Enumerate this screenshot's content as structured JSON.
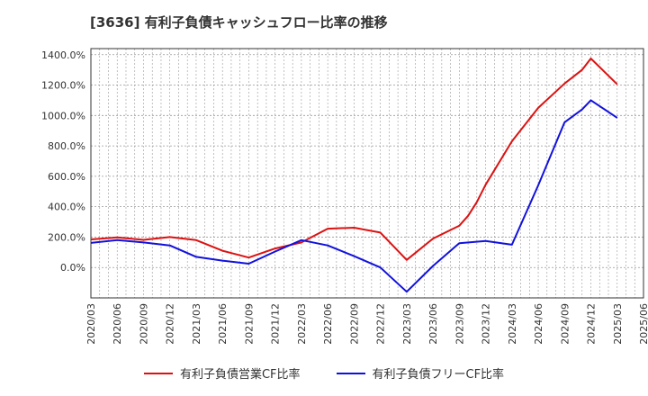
{
  "title": "[3636]  有利子負債キャッシュフロー比率の推移",
  "colors": {
    "series_1": "#dd1111",
    "series_2": "#1111dd",
    "grid": "#999999",
    "axis": "#333333"
  },
  "chart_data": {
    "type": "line",
    "title": "[3636]  有利子負債キャッシュフロー比率の推移",
    "x_ticks": [
      "2020/03",
      "2020/06",
      "2020/09",
      "2020/12",
      "2021/03",
      "2021/06",
      "2021/09",
      "2021/12",
      "2022/03",
      "2022/06",
      "2022/09",
      "2022/12",
      "2023/03",
      "2023/06",
      "2023/09",
      "2023/12",
      "2024/03",
      "2024/06",
      "2024/09",
      "2024/12",
      "2025/03",
      "2025/06"
    ],
    "y_ticks": [
      0,
      200,
      400,
      600,
      800,
      1000,
      1200,
      1400
    ],
    "y_tick_labels": [
      "0.0%",
      "200.0%",
      "400.0%",
      "600.0%",
      "800.0%",
      "1000.0%",
      "1200.0%",
      "1400.0%"
    ],
    "ylim": [
      -200,
      1440
    ],
    "grid": true,
    "legend_position": "bottom",
    "series": [
      {
        "name": "有利子負債営業CF比率",
        "color": "#dd1111",
        "points": [
          [
            "2020/03",
            185
          ],
          [
            "2020/06",
            198
          ],
          [
            "2020/09",
            182
          ],
          [
            "2020/12",
            200
          ],
          [
            "2021/03",
            180
          ],
          [
            "2021/06",
            110
          ],
          [
            "2021/09",
            65
          ],
          [
            "2021/12",
            125
          ],
          [
            "2022/03",
            165
          ],
          [
            "2022/06",
            255
          ],
          [
            "2022/09",
            262
          ],
          [
            "2022/12",
            230
          ],
          [
            "2023/03",
            50
          ],
          [
            "2023/06",
            190
          ],
          [
            "2023/09",
            275
          ],
          [
            "2023/10",
            340
          ],
          [
            "2023/11",
            430
          ],
          [
            "2023/12",
            545
          ],
          [
            "2024/03",
            830
          ],
          [
            "2024/06",
            1050
          ],
          [
            "2024/09",
            1210
          ],
          [
            "2024/11",
            1300
          ],
          [
            "2024/12",
            1375
          ],
          [
            "2025/03",
            1205
          ]
        ]
      },
      {
        "name": "有利子負債フリーCF比率",
        "color": "#1111dd",
        "points": [
          [
            "2020/03",
            162
          ],
          [
            "2020/06",
            180
          ],
          [
            "2020/09",
            165
          ],
          [
            "2020/12",
            145
          ],
          [
            "2021/03",
            70
          ],
          [
            "2021/06",
            45
          ],
          [
            "2021/09",
            25
          ],
          [
            "2021/12",
            105
          ],
          [
            "2022/03",
            180
          ],
          [
            "2022/06",
            145
          ],
          [
            "2022/09",
            75
          ],
          [
            "2022/12",
            0
          ],
          [
            "2023/03",
            -160
          ],
          [
            "2023/06",
            10
          ],
          [
            "2023/09",
            160
          ],
          [
            "2023/12",
            175
          ],
          [
            "2024/03",
            150
          ],
          [
            "2024/06",
            540
          ],
          [
            "2024/09",
            955
          ],
          [
            "2024/11",
            1040
          ],
          [
            "2024/12",
            1100
          ],
          [
            "2025/03",
            985
          ]
        ]
      }
    ]
  }
}
